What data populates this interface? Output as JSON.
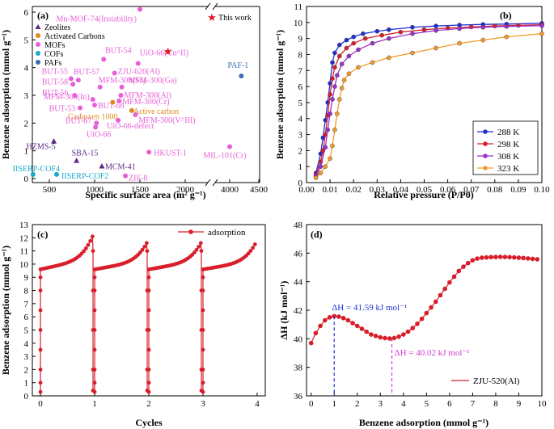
{
  "chart_data": [
    {
      "panel": "(a)",
      "type": "scatter",
      "xlabel": "Specific surface area (m² g⁻¹)",
      "ylabel": "Benzene adsorption (mmol g⁻¹)",
      "xticks": [
        "500",
        "1000",
        "1500",
        "2000",
        "4000",
        "4500"
      ],
      "yticks": [
        "0",
        "1",
        "2",
        "3",
        "4",
        "5",
        "6"
      ],
      "xaxis_break": "between 2200 and 3500",
      "legend": [
        {
          "name": "Zeolites",
          "color": "#5b2a86"
        },
        {
          "name": "Activated Carbons",
          "color": "#e08a1e"
        },
        {
          "name": "MOFs",
          "color": "#e85fd8"
        },
        {
          "name": "COFs",
          "color": "#19a9c9"
        },
        {
          "name": "PAFs",
          "color": "#3a6eb0"
        }
      ],
      "this_work_label": "This work",
      "points": [
        {
          "label": "Mn-MOF-74(Instability)",
          "x": 1500,
          "y": 6.1,
          "cat": "MOFs"
        },
        {
          "label": "BUT-54",
          "x": 1100,
          "y": 4.3,
          "cat": "MOFs"
        },
        {
          "label": "UiO-66(Cu^II)",
          "x": 1480,
          "y": 4.15,
          "cat": "MOFs"
        },
        {
          "label": "ZJU-620(Al)",
          "x": 1220,
          "y": 3.8,
          "cat": "MOFs"
        },
        {
          "label": "BUT-55",
          "x": 740,
          "y": 3.6,
          "cat": "MOFs"
        },
        {
          "label": "BUT-57",
          "x": 820,
          "y": 3.55,
          "cat": "MOFs"
        },
        {
          "label": "BUT-58",
          "x": 760,
          "y": 3.4,
          "cat": "MOFs"
        },
        {
          "label": "MFM-300(Sc)",
          "x": 1060,
          "y": 3.3,
          "cat": "MOFs"
        },
        {
          "label": "MFM-300(Ga)",
          "x": 1300,
          "y": 3.3,
          "cat": "MOFs"
        },
        {
          "label": "BUT-56",
          "x": 780,
          "y": 3.0,
          "cat": "MOFs"
        },
        {
          "label": "MFM-300(Al)",
          "x": 1290,
          "y": 3.0,
          "cat": "MOFs"
        },
        {
          "label": "MFM-300(In)",
          "x": 980,
          "y": 2.85,
          "cat": "MOFs"
        },
        {
          "label": "MFM-300(Cr)",
          "x": 1270,
          "y": 2.8,
          "cat": "MOFs"
        },
        {
          "label": "BUT-53",
          "x": 840,
          "y": 2.55,
          "cat": "MOFs"
        },
        {
          "label": "BUT-66",
          "x": 1000,
          "y": 2.65,
          "cat": "MOFs"
        },
        {
          "label": "Active carbon",
          "x": 1410,
          "y": 2.45,
          "cat": "Activated Carbons"
        },
        {
          "label": "Carboxen 1000",
          "x": 1200,
          "y": 2.75,
          "cat": "Activated Carbons"
        },
        {
          "label": "MFM-300(V^III)",
          "x": 1450,
          "y": 2.3,
          "cat": "MOFs"
        },
        {
          "label": "BUT-67",
          "x": 1020,
          "y": 2.0,
          "cat": "MOFs"
        },
        {
          "label": "UiO-66-defect",
          "x": 1260,
          "y": 2.1,
          "cat": "MOFs"
        },
        {
          "label": "UiO-66",
          "x": 1010,
          "y": 1.85,
          "cat": "MOFs"
        },
        {
          "label": "HZMS-5",
          "x": 550,
          "y": 1.35,
          "cat": "Zeolites"
        },
        {
          "label": "HKUST-1",
          "x": 1600,
          "y": 0.95,
          "cat": "MOFs"
        },
        {
          "label": "MIL-101(Cr)",
          "x": 4000,
          "y": 1.15,
          "cat": "MOFs"
        },
        {
          "label": "SBA-15",
          "x": 800,
          "y": 0.65,
          "cat": "Zeolites"
        },
        {
          "label": "MCM-41",
          "x": 1080,
          "y": 0.45,
          "cat": "Zeolites"
        },
        {
          "label": "IISERP-COF4",
          "x": 320,
          "y": 0.15,
          "cat": "COFs"
        },
        {
          "label": "IISERP-COF2",
          "x": 580,
          "y": 0.15,
          "cat": "COFs"
        },
        {
          "label": "ZIF-8",
          "x": 1340,
          "y": 0.1,
          "cat": "MOFs"
        },
        {
          "label": "PAF-1",
          "x": 4200,
          "y": 3.7,
          "cat": "PAFs"
        },
        {
          "label": "This work",
          "x": 1810,
          "y": 4.6,
          "cat": "This work"
        }
      ]
    },
    {
      "panel": "(b)",
      "type": "line",
      "xlabel": "Relative pressure (P/P0)",
      "ylabel": "Benzene adsorption (mmol g⁻¹)",
      "xlim": [
        0,
        0.1
      ],
      "ylim": [
        0,
        11
      ],
      "xticks": [
        "0.00",
        "0.01",
        "0.02",
        "0.03",
        "0.04",
        "0.05",
        "0.06",
        "0.07",
        "0.08",
        "0.09",
        "0.10"
      ],
      "yticks": [
        "0",
        "1",
        "2",
        "3",
        "4",
        "5",
        "6",
        "7",
        "8",
        "9",
        "10",
        "11"
      ],
      "series": [
        {
          "name": "288 K",
          "color": "#1f2fd0",
          "x": [
            0.004,
            0.006,
            0.007,
            0.008,
            0.009,
            0.01,
            0.011,
            0.012,
            0.014,
            0.017,
            0.02,
            0.024,
            0.03,
            0.035,
            0.045,
            0.055,
            0.065,
            0.075,
            0.085,
            0.1
          ],
          "y": [
            0.6,
            1.8,
            2.8,
            3.9,
            5.0,
            6.2,
            7.5,
            8.1,
            8.6,
            8.9,
            9.1,
            9.3,
            9.45,
            9.55,
            9.7,
            9.78,
            9.84,
            9.88,
            9.9,
            9.95
          ]
        },
        {
          "name": "298 K",
          "color": "#d81e2a",
          "x": [
            0.004,
            0.006,
            0.007,
            0.008,
            0.009,
            0.01,
            0.011,
            0.012,
            0.014,
            0.017,
            0.02,
            0.025,
            0.032,
            0.04,
            0.05,
            0.06,
            0.07,
            0.08,
            0.09,
            0.1
          ],
          "y": [
            0.5,
            1.3,
            2.0,
            3.0,
            4.2,
            5.5,
            6.5,
            7.2,
            7.9,
            8.4,
            8.7,
            9.0,
            9.2,
            9.4,
            9.55,
            9.65,
            9.72,
            9.78,
            9.82,
            9.86
          ]
        },
        {
          "name": "308 K",
          "color": "#9a32c8",
          "x": [
            0.004,
            0.006,
            0.008,
            0.009,
            0.01,
            0.011,
            0.012,
            0.013,
            0.015,
            0.018,
            0.022,
            0.028,
            0.035,
            0.045,
            0.055,
            0.065,
            0.075,
            0.085,
            0.1
          ],
          "y": [
            0.4,
            1.0,
            2.2,
            3.3,
            4.3,
            5.2,
            6.0,
            6.7,
            7.4,
            7.9,
            8.3,
            8.7,
            9.0,
            9.3,
            9.5,
            9.62,
            9.7,
            9.75,
            9.8
          ]
        },
        {
          "name": "323 K",
          "color": "#f29a2e",
          "x": [
            0.004,
            0.006,
            0.008,
            0.01,
            0.011,
            0.012,
            0.013,
            0.014,
            0.015,
            0.016,
            0.018,
            0.022,
            0.028,
            0.035,
            0.045,
            0.055,
            0.065,
            0.075,
            0.085,
            0.1
          ],
          "y": [
            0.3,
            0.6,
            1.0,
            1.5,
            2.3,
            3.3,
            4.3,
            5.2,
            5.9,
            6.4,
            6.8,
            7.2,
            7.5,
            7.8,
            8.1,
            8.4,
            8.7,
            8.9,
            9.1,
            9.3
          ]
        }
      ]
    },
    {
      "panel": "(c)",
      "type": "line",
      "xlabel": "Cycles",
      "ylabel": "Benzene adsorption (mmol g⁻¹)",
      "xlim": [
        0,
        4
      ],
      "ylim": [
        0,
        13
      ],
      "xticks": [
        "0",
        "1",
        "2",
        "3",
        "4"
      ],
      "yticks": [
        "0",
        "1",
        "2",
        "3",
        "4",
        "5",
        "6",
        "7",
        "8",
        "9",
        "10",
        "11",
        "12",
        "13"
      ],
      "series_name": "adsorption",
      "color": "#d81e2a",
      "cycle_starts": [
        0,
        1,
        2,
        3
      ],
      "peak_values": [
        12.1,
        11.6,
        11.6,
        11.5
      ]
    },
    {
      "panel": "(d)",
      "type": "line",
      "xlabel": "Benzene adsorption (mmol g⁻¹)",
      "ylabel": "ΔH (kJ mol⁻¹)",
      "xlim": [
        0,
        10
      ],
      "ylim": [
        36,
        48
      ],
      "xticks": [
        "0",
        "1",
        "2",
        "3",
        "4",
        "5",
        "6",
        "7",
        "8",
        "9",
        "10"
      ],
      "yticks": [
        "36",
        "38",
        "40",
        "42",
        "44",
        "46",
        "48"
      ],
      "legend": "ZJU-520(Al)",
      "color": "#d81e2a",
      "annotations": [
        {
          "text": "ΔH = 41.59 kJ mol⁻¹",
          "x": 1.0,
          "y": 41.59,
          "color": "#1f2fd0"
        },
        {
          "text": "ΔH = 40.02 kJ mol⁻¹",
          "x": 3.5,
          "y": 40.02,
          "color": "#d23ad2"
        }
      ],
      "x": [
        0,
        0.2,
        0.4,
        0.6,
        0.8,
        1.0,
        1.2,
        1.4,
        1.6,
        1.8,
        2.0,
        2.2,
        2.4,
        2.6,
        2.8,
        3.0,
        3.2,
        3.4,
        3.6,
        3.8,
        4.0,
        4.2,
        4.4,
        4.6,
        4.8,
        5.0,
        5.2,
        5.4,
        5.6,
        5.8,
        6.0,
        6.2,
        6.4,
        6.6,
        6.8,
        7.0,
        7.2,
        7.4,
        7.6,
        7.8,
        8.0,
        8.2,
        8.4,
        8.6,
        8.8,
        9.0,
        9.2,
        9.4,
        9.6,
        9.8
      ],
      "y": [
        39.7,
        40.4,
        40.9,
        41.3,
        41.5,
        41.59,
        41.55,
        41.45,
        41.3,
        41.1,
        40.9,
        40.7,
        40.5,
        40.3,
        40.2,
        40.1,
        40.05,
        40.02,
        40.05,
        40.15,
        40.3,
        40.5,
        40.75,
        41.05,
        41.4,
        41.8,
        42.2,
        42.6,
        43.05,
        43.5,
        43.95,
        44.35,
        44.75,
        45.05,
        45.3,
        45.5,
        45.62,
        45.68,
        45.7,
        45.72,
        45.73,
        45.74,
        45.73,
        45.72,
        45.7,
        45.68,
        45.66,
        45.63,
        45.6,
        45.57
      ]
    }
  ]
}
